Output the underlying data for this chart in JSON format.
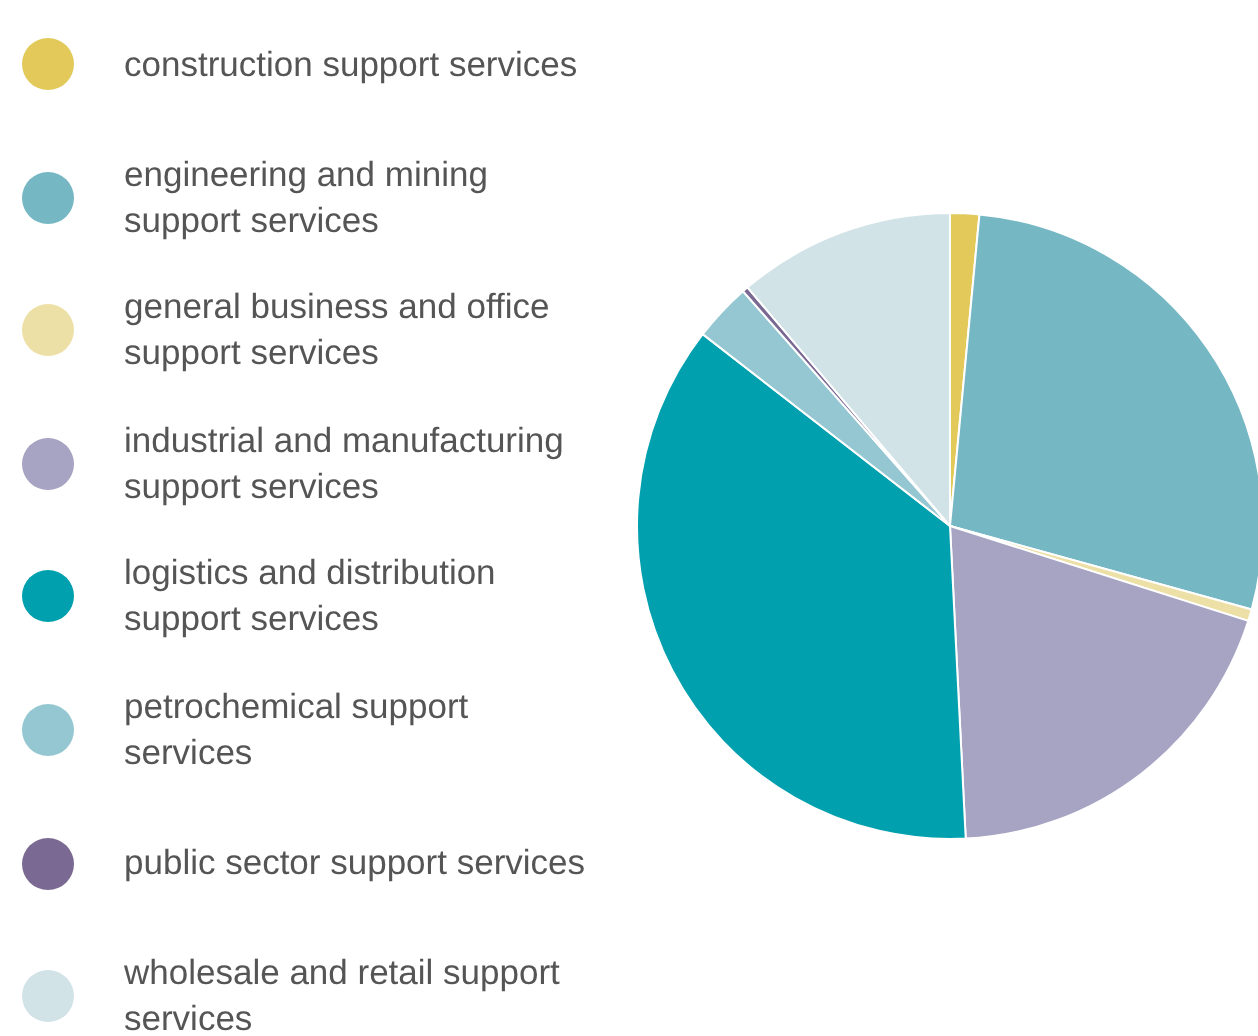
{
  "chart_data": {
    "type": "pie",
    "legend": "left",
    "categories": [
      "construction support services",
      "engineering and mining support services",
      "general business and office support services",
      "industrial and manufacturing support services",
      "logistics and distribution support services",
      "petrochemical support services",
      "public sector support services",
      "wholesale and retail support services"
    ],
    "values": [
      1.5,
      27.8,
      0.6,
      19.3,
      36.3,
      3.0,
      0.3,
      11.2
    ],
    "colors": [
      "#e2c95a",
      "#76b7c4",
      "#ede0a6",
      "#a6a3c3",
      "#00a0af",
      "#94c7d1",
      "#7a6a93",
      "#d2e3e8"
    ]
  }
}
